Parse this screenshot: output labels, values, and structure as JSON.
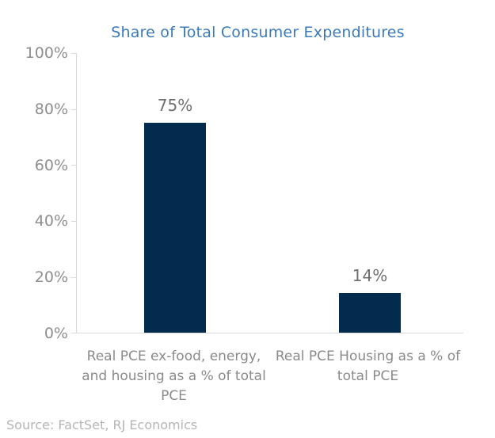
{
  "chart_data": {
    "type": "bar",
    "title": "Share of Total Consumer Expenditures",
    "categories": [
      "Real PCE ex-food, energy, and housing as a % of total PCE",
      "Real PCE Housing as a % of total PCE"
    ],
    "values": [
      75,
      14
    ],
    "value_labels": [
      "75%",
      "14%"
    ],
    "xlabel": "",
    "ylabel": "",
    "ylim": [
      0,
      100
    ],
    "yticks": [
      0,
      20,
      40,
      60,
      80,
      100
    ],
    "ytick_labels": [
      "0%",
      "20%",
      "40%",
      "60%",
      "80%",
      "100%"
    ],
    "grid": false,
    "legend_position": "none",
    "bar_color": "#022b4d",
    "title_color": "#3a7abd",
    "axis_line_color": "#d9d9d9"
  },
  "source_note": "Source: FactSet, RJ Economics"
}
